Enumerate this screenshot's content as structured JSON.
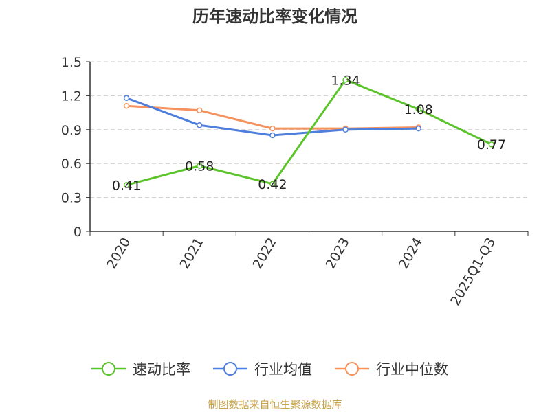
{
  "chart_data": {
    "type": "line",
    "title": "历年速动比率变化情况",
    "categories": [
      "2020",
      "2021",
      "2022",
      "2023",
      "2024",
      "2025Q1-Q3"
    ],
    "series": [
      {
        "name": "速动比率",
        "color": "#5bc42a",
        "values": [
          0.41,
          0.58,
          0.42,
          1.34,
          1.08,
          0.77
        ],
        "labels": [
          "0.41",
          "0.58",
          "0.42",
          "1.34",
          "1.08",
          "0.77"
        ]
      },
      {
        "name": "行业均值",
        "color": "#4f7fdc",
        "values": [
          1.18,
          0.94,
          0.85,
          0.9,
          0.91,
          null
        ]
      },
      {
        "name": "行业中位数",
        "color": "#f5925e",
        "values": [
          1.11,
          1.07,
          0.91,
          0.91,
          0.92,
          null
        ]
      }
    ],
    "ylim": [
      0,
      1.5
    ],
    "yticks": [
      0,
      0.3,
      0.6,
      0.9,
      1.2,
      1.5
    ],
    "ytick_labels": [
      "0",
      "0.3",
      "0.6",
      "0.9",
      "1.2",
      "1.5"
    ],
    "grid": true,
    "legend_position": "bottom"
  },
  "source_text": "制图数据来自恒生聚源数据库",
  "colors": {
    "axis": "#333333",
    "grid": "#cccccc",
    "source": "#c8a24a"
  }
}
